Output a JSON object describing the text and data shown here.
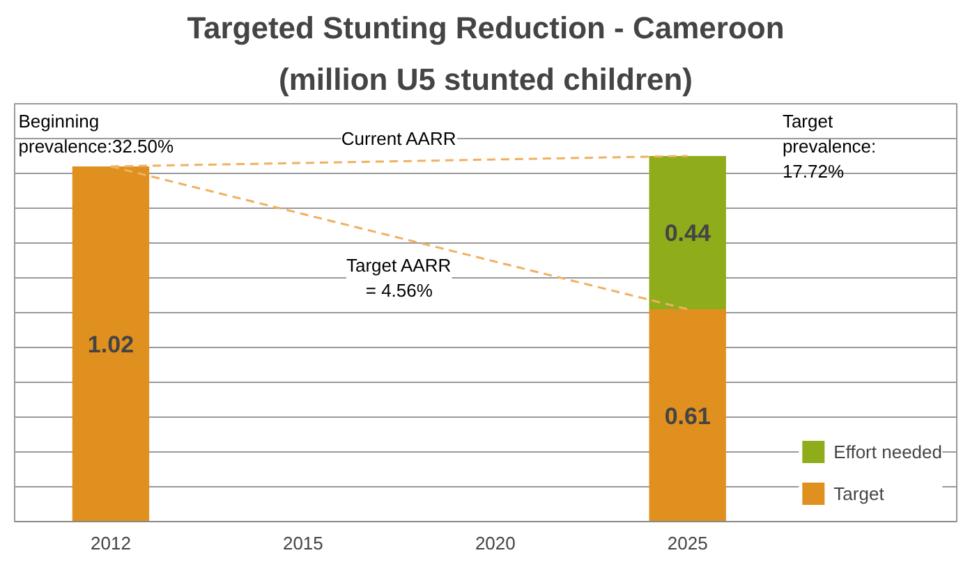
{
  "chart_data": {
    "type": "bar",
    "title": "Targeted Stunting Reduction - Cameroon",
    "subtitle": "(million U5 stunted children)",
    "categories": [
      "2012",
      "2015",
      "2020",
      "2025"
    ],
    "stacked": true,
    "series": [
      {
        "name": "Target",
        "color": "#e0901f",
        "values": [
          1.02,
          null,
          null,
          0.61
        ],
        "value_labels": [
          "1.02",
          null,
          null,
          "0.61"
        ]
      },
      {
        "name": "Effort needed",
        "color": "#8fad1a",
        "values": [
          null,
          null,
          null,
          0.44
        ],
        "value_labels": [
          null,
          null,
          null,
          "0.44"
        ]
      },
      {
        "type": "line",
        "color": "#f0b060",
        "line_style": "dashed",
        "values": [
          1.02,
          null,
          null,
          1.05
        ]
      },
      {
        "type": "line",
        "color": "#f0b060",
        "line_style": "dashed",
        "values": [
          1.02,
          null,
          null,
          0.61
        ]
      }
    ],
    "ylim": [
      0,
      1.2
    ],
    "yticks": [
      {
        "value": 0,
        "label": null
      },
      {
        "value": 0.1,
        "label": null
      },
      {
        "value": 0.2,
        "label": null
      },
      {
        "value": 0.3,
        "label": null
      },
      {
        "value": 0.4,
        "label": null
      },
      {
        "value": 0.5,
        "label": null
      },
      {
        "value": 0.6,
        "label": null
      },
      {
        "value": 0.7,
        "label": null
      },
      {
        "value": 0.8,
        "label": null
      },
      {
        "value": 0.9,
        "label": null
      },
      {
        "value": 1.0,
        "label": null
      },
      {
        "value": 1.1,
        "label": null
      },
      {
        "value": 1.2,
        "label": null
      }
    ],
    "grid": "y",
    "tick_labels": "x",
    "legend": "bottom right",
    "annotations": [
      "Beginning\nprevalence:32.50%",
      "Target\nprevalence:\n17.72%",
      "Current AARR",
      "Target AARR\n= 4.56%"
    ]
  }
}
